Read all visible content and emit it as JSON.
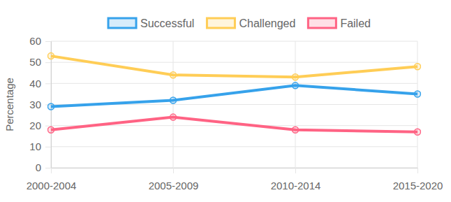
{
  "chart_data": {
    "type": "line",
    "y_label": "Percentage",
    "categories": [
      "2000-2004",
      "2005-2009",
      "2010-2014",
      "2015-2020"
    ],
    "series": [
      {
        "name": "Successful",
        "color": "#36a2eb",
        "values": [
          29,
          32,
          39,
          35
        ]
      },
      {
        "name": "Challenged",
        "color": "#ffcd56",
        "values": [
          53,
          44,
          43,
          48
        ]
      },
      {
        "name": "Failed",
        "color": "#ff6384",
        "values": [
          18,
          24,
          18,
          17
        ]
      }
    ],
    "ylim": [
      0,
      60
    ],
    "yticks": [
      0,
      10,
      20,
      30,
      40,
      50,
      60
    ],
    "grid": true,
    "legend": "top",
    "marker": "circle"
  }
}
